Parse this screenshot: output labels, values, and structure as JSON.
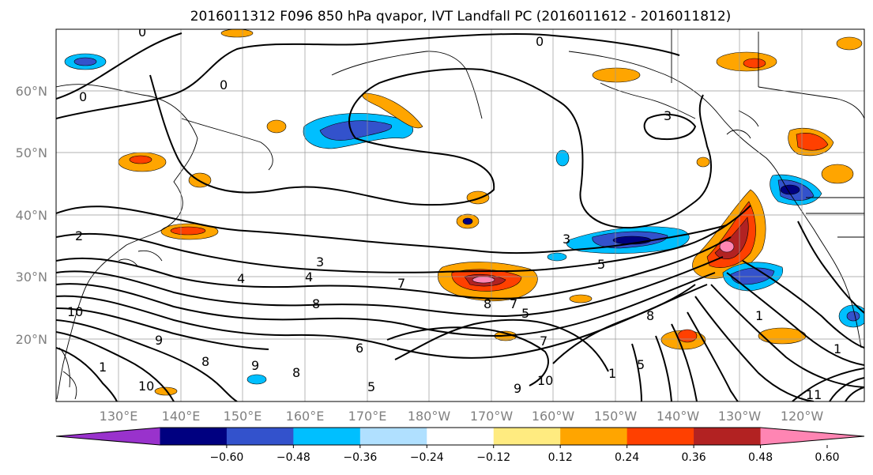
{
  "title": "2016011312 F096 850 hPa qvapor, IVT Landfall PC (2016011612 - 2016011812)",
  "lat_labels": [
    "60°N",
    "50°N",
    "40°N",
    "30°N",
    "20°N"
  ],
  "lon_labels": [
    "130°E",
    "140°E",
    "150°E",
    "160°E",
    "170°E",
    "180°W",
    "170°W",
    "160°W",
    "150°W",
    "140°W",
    "130°W",
    "120°W"
  ],
  "colorbar": {
    "colors": [
      "#9932cc",
      "#000080",
      "#3352cc",
      "#00bfff",
      "#b0e0ff",
      "#ffffff",
      "#ffeb80",
      "#ffa500",
      "#ff4000",
      "#b22222",
      "#ff85b3"
    ],
    "tick_labels": [
      "−0.60",
      "−0.48",
      "−0.36",
      "−0.24",
      "−0.12",
      "0.12",
      "0.24",
      "0.36",
      "0.48",
      "0.60"
    ]
  },
  "contour_labels": [
    "0",
    "0",
    "0",
    "0",
    "3",
    "2",
    "3",
    "4",
    "4",
    "3",
    "5",
    "7",
    "8",
    "10",
    "9",
    "8",
    "7",
    "5",
    "7",
    "8",
    "5",
    "1",
    "1",
    "9",
    "6",
    "10",
    "9",
    "8",
    "8",
    "5",
    "10",
    "1",
    "11",
    "1"
  ],
  "chart_data": {
    "type": "map",
    "fill_variable": "850 hPa qvapor PC",
    "contour_variable": "IVT",
    "lat_range": [
      10,
      70
    ],
    "lon_range": [
      120,
      250
    ],
    "fill_levels": [
      -0.6,
      -0.48,
      -0.36,
      -0.24,
      -0.12,
      0.12,
      0.24,
      0.36,
      0.48,
      0.6
    ]
  }
}
